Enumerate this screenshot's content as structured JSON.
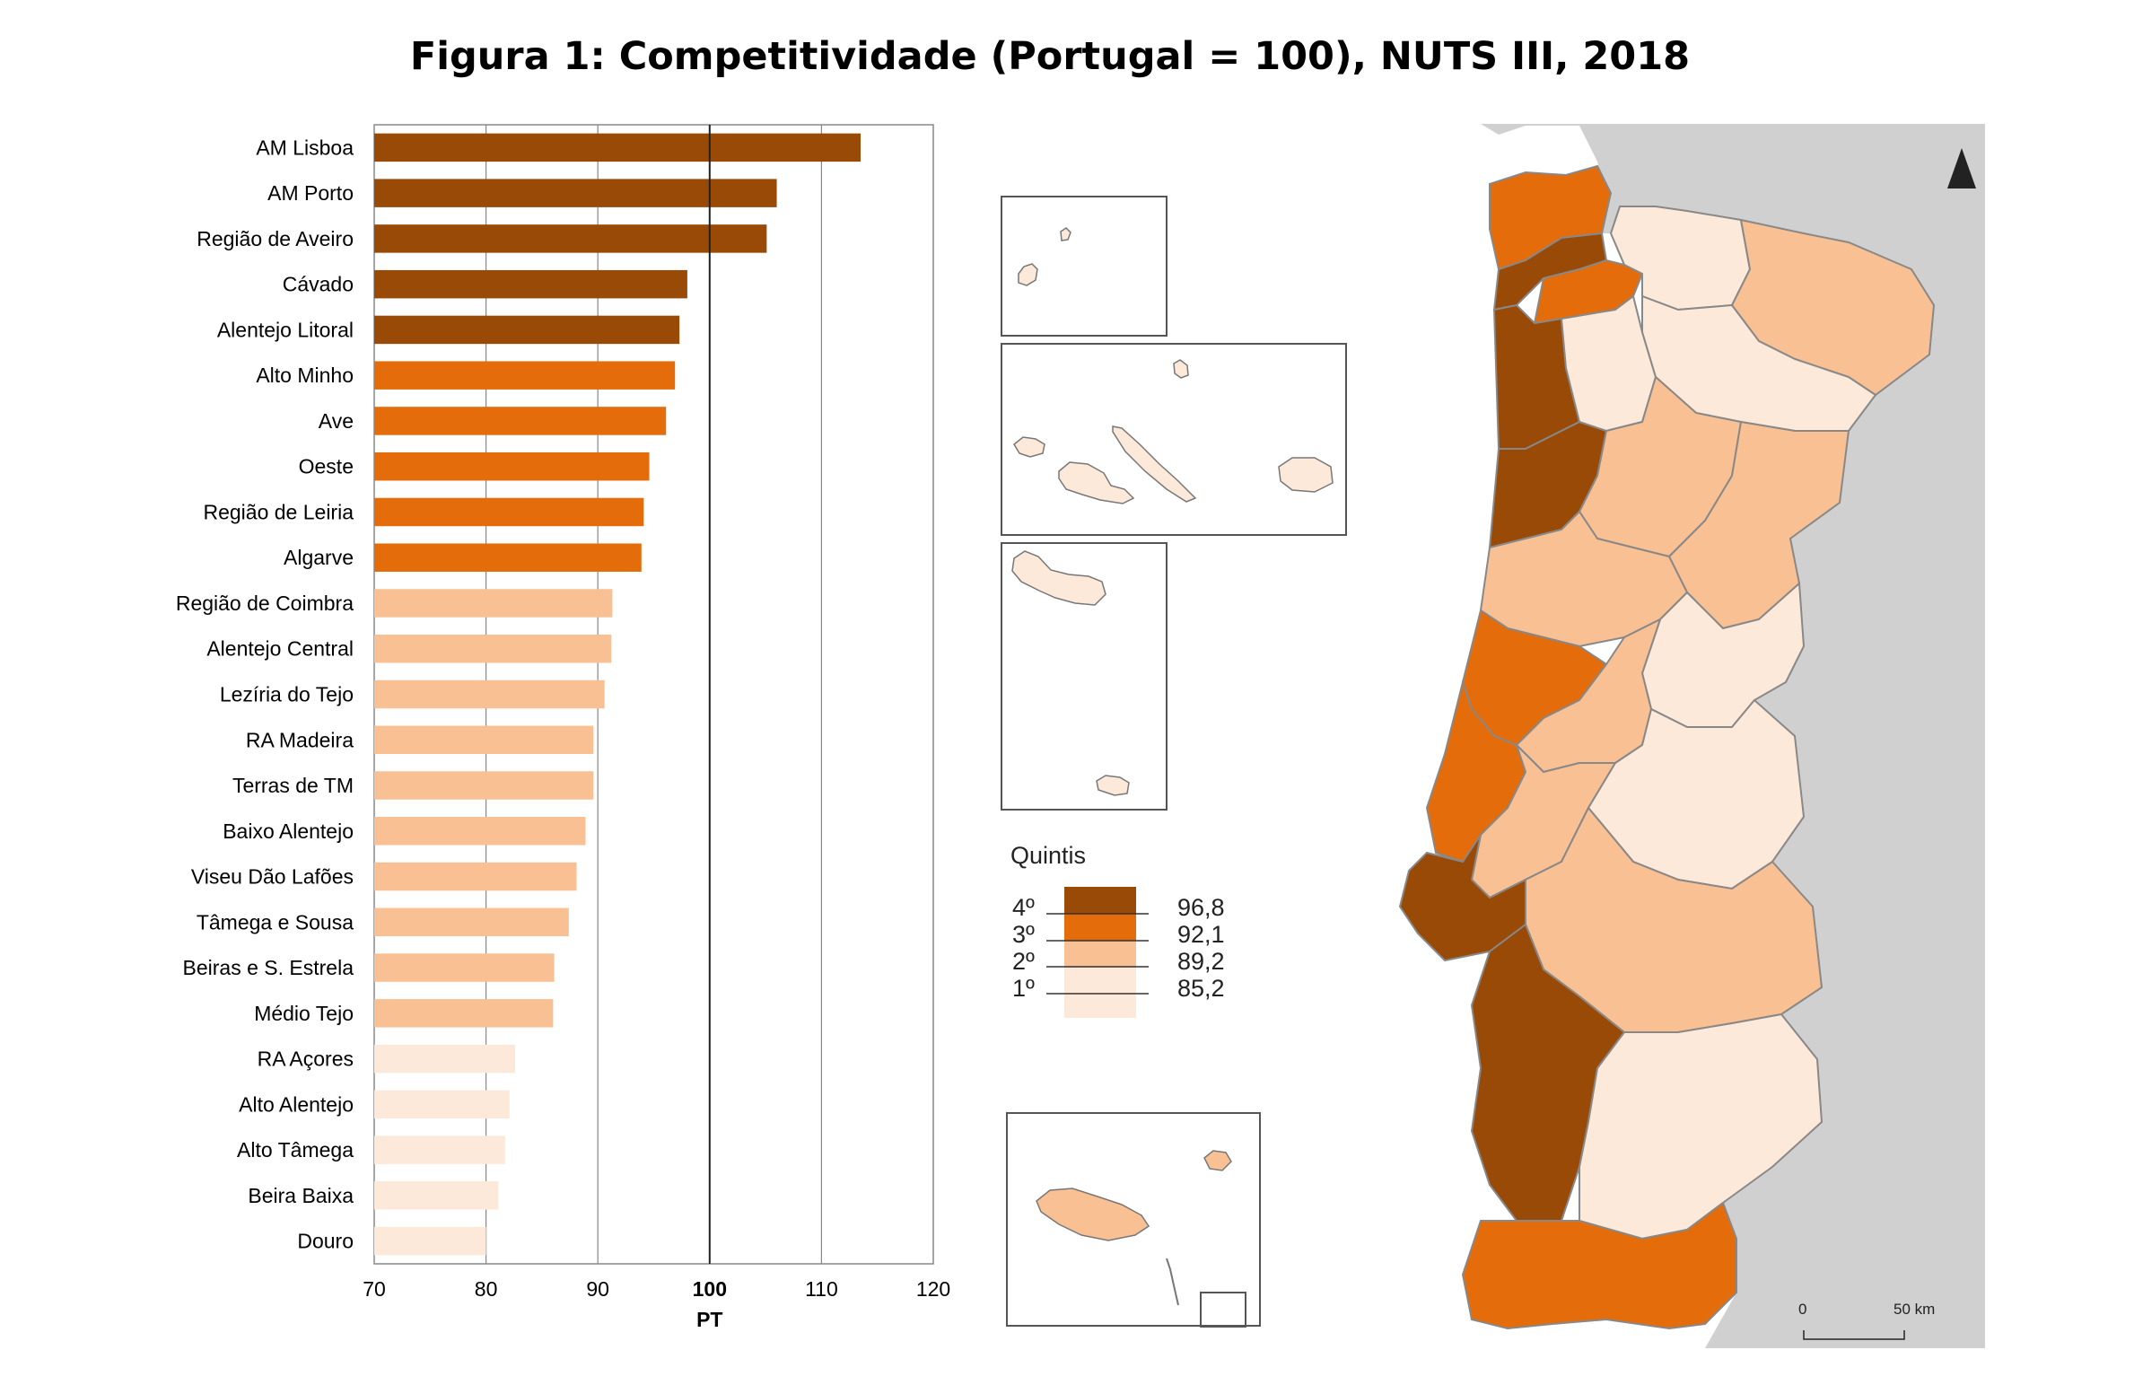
{
  "title": "Figura 1: Competitividade (Portugal = 100), NUTS III, 2018",
  "colors": {
    "q4": "#994a07",
    "q3": "#e46c0a",
    "q2": "#f9c093",
    "q1": "#fce9da",
    "land_outside": "#d0d0d0",
    "grid": "#888888"
  },
  "chart_data": {
    "type": "bar",
    "orientation": "horizontal",
    "categories": [
      "AM Lisboa",
      "AM Porto",
      "Região de Aveiro",
      "Cávado",
      "Alentejo Litoral",
      "Alto Minho",
      "Ave",
      "Oeste",
      "Região de Leiria",
      "Algarve",
      "Região de Coimbra",
      "Alentejo Central",
      "Lezíria do Tejo",
      "RA Madeira",
      "Terras de TM",
      "Baixo Alentejo",
      "Viseu Dão Lafões",
      "Tâmega e Sousa",
      "Beiras e S. Estrela",
      "Médio Tejo",
      "RA Açores",
      "Alto Alentejo",
      "Alto Tâmega",
      "Beira Baixa",
      "Douro"
    ],
    "values": [
      113.5,
      106.0,
      105.1,
      98.0,
      97.3,
      96.9,
      96.1,
      94.6,
      94.1,
      93.9,
      91.3,
      91.2,
      90.6,
      89.6,
      89.6,
      88.9,
      88.1,
      87.4,
      86.1,
      86.0,
      82.6,
      82.1,
      81.7,
      81.1,
      80.0
    ],
    "quintile": [
      4,
      4,
      4,
      4,
      4,
      3,
      3,
      3,
      3,
      3,
      2,
      2,
      2,
      2,
      2,
      2,
      2,
      2,
      2,
      2,
      1,
      1,
      1,
      1,
      1
    ],
    "xlim": [
      70,
      120
    ],
    "xticks": [
      "70",
      "80",
      "90",
      "100",
      "110",
      "120"
    ],
    "reference_label": "PT",
    "reference_value": 100,
    "grid": true
  },
  "legend": {
    "title": "Quintis",
    "classes": [
      {
        "label": "4º",
        "value": "96,8",
        "color": "#994a07"
      },
      {
        "label": "3º",
        "value": "92,1",
        "color": "#e46c0a"
      },
      {
        "label": "2º",
        "value": "89,2",
        "color": "#f9c093"
      },
      {
        "label": "1º",
        "value": "85,2",
        "color": "#fce9da"
      }
    ]
  },
  "scale_bar": {
    "start": "0",
    "end": "50 km"
  },
  "north_arrow": "north-arrow-icon"
}
